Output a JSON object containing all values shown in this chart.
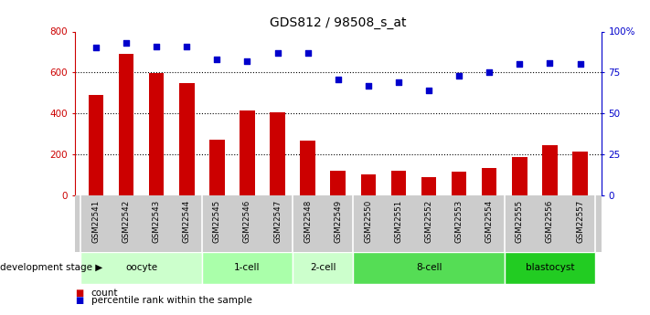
{
  "title": "GDS812 / 98508_s_at",
  "samples": [
    "GSM22541",
    "GSM22542",
    "GSM22543",
    "GSM22544",
    "GSM22545",
    "GSM22546",
    "GSM22547",
    "GSM22548",
    "GSM22549",
    "GSM22550",
    "GSM22551",
    "GSM22552",
    "GSM22553",
    "GSM22554",
    "GSM22555",
    "GSM22556",
    "GSM22557"
  ],
  "counts": [
    490,
    690,
    595,
    550,
    270,
    415,
    405,
    265,
    120,
    100,
    120,
    90,
    115,
    135,
    185,
    245,
    215
  ],
  "percentiles": [
    90,
    93,
    91,
    91,
    83,
    82,
    87,
    87,
    71,
    67,
    69,
    64,
    73,
    75,
    80,
    81,
    80
  ],
  "bar_color": "#cc0000",
  "dot_color": "#0000cc",
  "ylim_left": [
    0,
    800
  ],
  "ylim_right": [
    0,
    100
  ],
  "yticks_left": [
    0,
    200,
    400,
    600,
    800
  ],
  "yticks_right": [
    0,
    25,
    50,
    75,
    100
  ],
  "yticklabels_right": [
    "0",
    "25",
    "50",
    "75",
    "100%"
  ],
  "grid_values": [
    200,
    400,
    600
  ],
  "stages": [
    {
      "label": "oocyte",
      "start": 0,
      "end": 4,
      "color": "#ccffcc"
    },
    {
      "label": "1-cell",
      "start": 4,
      "end": 7,
      "color": "#aaffaa"
    },
    {
      "label": "2-cell",
      "start": 7,
      "end": 9,
      "color": "#ccffcc"
    },
    {
      "label": "8-cell",
      "start": 9,
      "end": 14,
      "color": "#55dd55"
    },
    {
      "label": "blastocyst",
      "start": 14,
      "end": 17,
      "color": "#22cc22"
    }
  ],
  "tick_bg_color": "#cccccc",
  "dev_stage_label": "development stage",
  "legend_items": [
    {
      "color": "#cc0000",
      "label": "count"
    },
    {
      "color": "#0000cc",
      "label": "percentile rank within the sample"
    }
  ]
}
